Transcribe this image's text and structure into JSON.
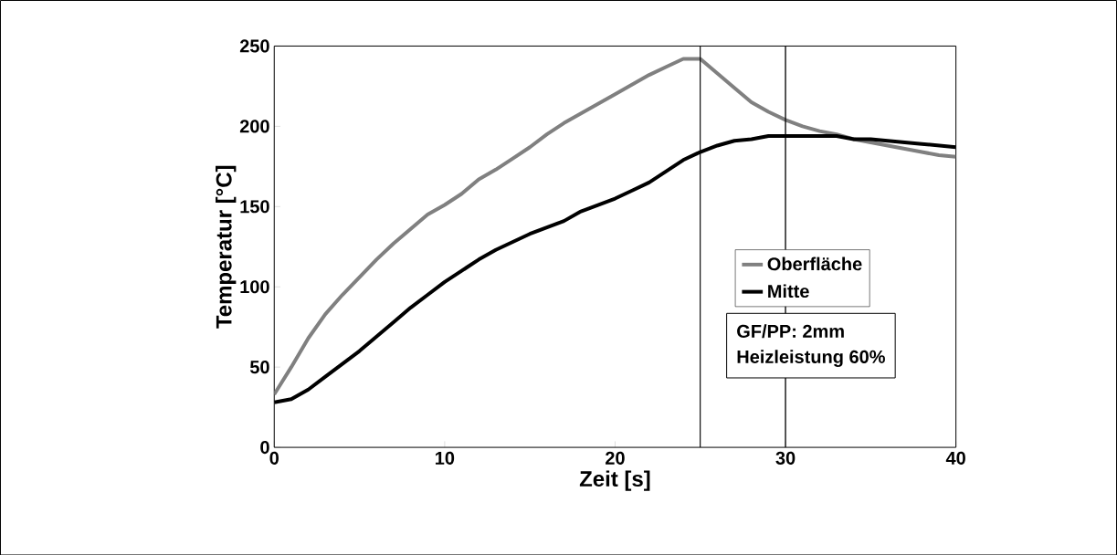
{
  "chart_data": {
    "type": "line",
    "xlabel": "Zeit [s]",
    "ylabel": "Temperatur [°C]",
    "x": [
      0,
      1,
      2,
      3,
      4,
      5,
      6,
      7,
      8,
      9,
      10,
      11,
      12,
      13,
      14,
      15,
      16,
      17,
      18,
      19,
      20,
      21,
      22,
      23,
      24,
      25,
      26,
      27,
      28,
      29,
      30,
      31,
      32,
      33,
      34,
      35,
      36,
      37,
      38,
      39,
      40
    ],
    "series": [
      {
        "name": "Oberfläche",
        "color": "#808080",
        "values": [
          33,
          50,
          68,
          83,
          95,
          106,
          117,
          127,
          136,
          145,
          151,
          158,
          167,
          173,
          180,
          187,
          195,
          202,
          208,
          214,
          220,
          226,
          232,
          237,
          242,
          242,
          233,
          224,
          215,
          209,
          204,
          200,
          197,
          195,
          192,
          190,
          188,
          186,
          184,
          182,
          181
        ]
      },
      {
        "name": "Mitte",
        "color": "#000000",
        "values": [
          28,
          30,
          36,
          44,
          52,
          60,
          69,
          78,
          87,
          95,
          103,
          110,
          117,
          123,
          128,
          133,
          137,
          141,
          147,
          151,
          155,
          160,
          165,
          172,
          179,
          184,
          188,
          191,
          192,
          194,
          194,
          194,
          194,
          194,
          192,
          192,
          191,
          190,
          189,
          188,
          187
        ]
      }
    ],
    "xlim": [
      0,
      40
    ],
    "xticks": [
      0,
      10,
      20,
      30,
      40
    ],
    "ylim": [
      0,
      250
    ],
    "yticks": [
      0,
      50,
      100,
      150,
      200,
      250
    ],
    "ref_lines": [
      {
        "axis": "x",
        "value": 25,
        "color": "#000000"
      },
      {
        "axis": "x",
        "value": 30,
        "color": "#000000"
      }
    ],
    "annotations": [
      "GF/PP: 2mm",
      "Heizleistung 60%"
    ],
    "legend": "right",
    "grid": false,
    "marker": "none",
    "line_style": "solid"
  }
}
